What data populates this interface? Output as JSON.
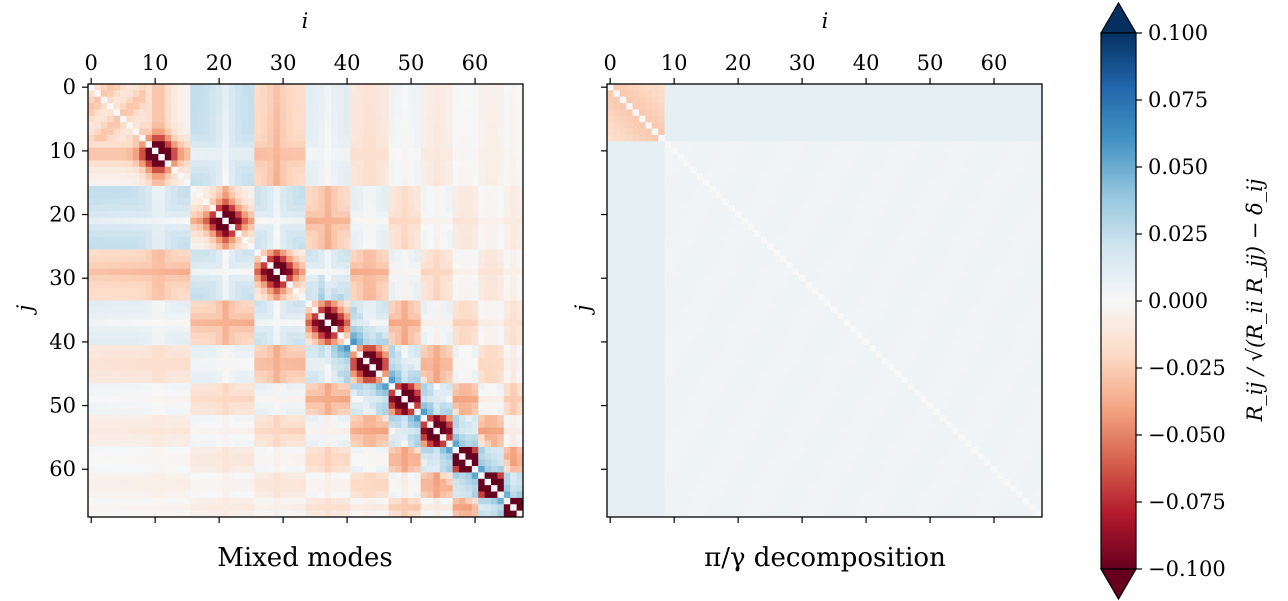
{
  "chart_data": [
    {
      "type": "heatmap",
      "title": "Mixed modes",
      "xlabel": "i",
      "ylabel": "j",
      "n": 68,
      "xticks": [
        "0",
        "10",
        "20",
        "30",
        "40",
        "50",
        "60"
      ],
      "yticks": [
        "0",
        "10",
        "20",
        "30",
        "40",
        "50",
        "60"
      ],
      "xtick_values": [
        0,
        10,
        20,
        30,
        40,
        50,
        60
      ],
      "ytick_values": [
        0,
        10,
        20,
        30,
        40,
        50,
        60
      ],
      "block_centers": [
        10.5,
        21,
        29,
        37,
        43.5,
        49,
        54,
        58.5,
        62.5,
        66
      ],
      "description_values": {
        "peak_negative_near_blocks": -0.1,
        "off_block_range": [
          -0.03,
          0.04
        ]
      }
    },
    {
      "type": "heatmap",
      "title": "π/γ decomposition",
      "xlabel": "i",
      "ylabel": "j",
      "n": 68,
      "xticks": [
        "0",
        "10",
        "20",
        "30",
        "40",
        "50",
        "60"
      ],
      "yticks": [],
      "xtick_values": [
        0,
        10,
        20,
        30,
        40,
        50,
        60
      ],
      "ytick_values": [
        0,
        10,
        20,
        30,
        40,
        50,
        60
      ],
      "pi_block_size": 9,
      "description_values": {
        "pi_block": -0.025,
        "cross_block": 0.008,
        "gamma_block": 0.004
      }
    }
  ],
  "colorbar": {
    "label": "R_ij / √(R_ii R_jj) − δ_ij",
    "min": -0.1,
    "max": 0.1,
    "ticks": [
      "0.100",
      "0.075",
      "0.050",
      "0.025",
      "0.000",
      "−0.025",
      "−0.050",
      "−0.075",
      "−0.100"
    ],
    "tick_values": [
      0.1,
      0.075,
      0.05,
      0.025,
      0,
      -0.025,
      -0.05,
      -0.075,
      -0.1
    ],
    "extend": "both",
    "colormap": "RdBu",
    "colors": [
      "#67001f",
      "#b2182b",
      "#d6604d",
      "#f4a582",
      "#fddbc7",
      "#f7f7f7",
      "#d1e5f0",
      "#92c5de",
      "#4393c3",
      "#2166ac",
      "#053061"
    ]
  }
}
